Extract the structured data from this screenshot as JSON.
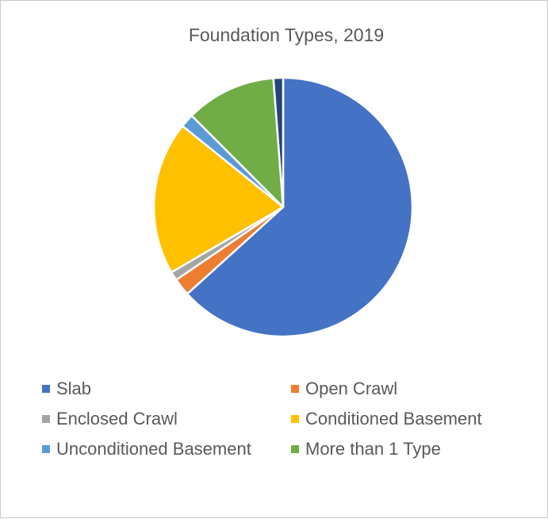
{
  "chart_data": {
    "type": "pie",
    "title": "Foundation Types, 2019",
    "categories": [
      "Slab",
      "Open Crawl",
      "Enclosed Crawl",
      "Conditioned Basement",
      "Unconditioned Basement",
      "More than 1 Type"
    ],
    "series": [
      {
        "values": [
          63.3,
          2.2,
          1.1,
          19.2,
          1.7,
          11.3
        ],
        "colors": [
          "#4472C4",
          "#ED7D31",
          "#A5A5A5",
          "#FFC000",
          "#5B9BD5",
          "#70AD47"
        ]
      }
    ],
    "extra_slices": [
      {
        "value": 1.2,
        "color": "#264478"
      }
    ],
    "legend_position": "bottom"
  }
}
